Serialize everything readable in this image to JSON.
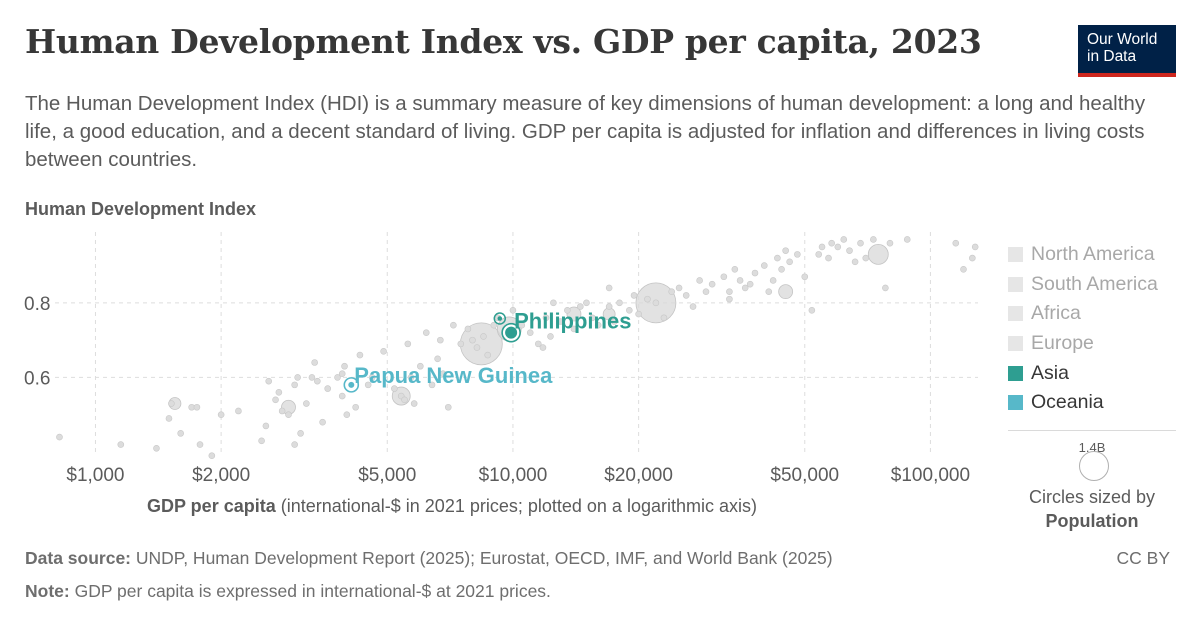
{
  "header": {
    "title": "Human Development Index vs. GDP per capita, 2023",
    "subtitle": "The Human Development Index (HDI) is a summary measure of key dimensions of human development: a long and healthy life, a good education, and a decent standard of living. GDP per capita is adjusted for inflation and differences in living costs between countries.",
    "logo_line1": "Our World",
    "logo_line2": "in Data"
  },
  "chart_data": {
    "type": "scatter",
    "title": "Human Development Index vs. GDP per capita, 2023",
    "ylabel": "Human Development Index",
    "xlabel_bold": "GDP per capita",
    "xlabel_rest": " (international-$ in 2021 prices; plotted on a logarithmic axis)",
    "x_scale": "log",
    "xlim": [
      800,
      130000
    ],
    "ylim": [
      0.4,
      0.99
    ],
    "x_ticks": [
      1000,
      2000,
      5000,
      10000,
      20000,
      50000,
      100000
    ],
    "x_tick_labels": [
      "$1,000",
      "$2,000",
      "$5,000",
      "$10,000",
      "$20,000",
      "$50,000",
      "$100,000"
    ],
    "y_ticks": [
      0.6,
      0.8
    ],
    "y_tick_labels": [
      "0.6",
      "0.8"
    ],
    "grid": true,
    "legend_position": "right",
    "colors": {
      "asia": "#2e9e91",
      "oceania": "#57b8c9",
      "muted_point": "#dcdcdc",
      "muted_point_stroke": "#c8c8c8",
      "muted_legend": "#e6e6e6"
    },
    "legend": [
      {
        "name": "North America",
        "color": "#e6e6e6",
        "muted": true
      },
      {
        "name": "South America",
        "color": "#e6e6e6",
        "muted": true
      },
      {
        "name": "Africa",
        "color": "#e6e6e6",
        "muted": true
      },
      {
        "name": "Europe",
        "color": "#e6e6e6",
        "muted": true
      },
      {
        "name": "Asia",
        "color": "#2e9e91",
        "muted": false
      },
      {
        "name": "Oceania",
        "color": "#57b8c9",
        "muted": false
      }
    ],
    "highlighted": [
      {
        "name": "Philippines",
        "x": 9900,
        "y": 0.72,
        "color": "#2e9e91"
      },
      {
        "name": "Papua New Guinea",
        "x": 4100,
        "y": 0.58,
        "color": "#57b8c9"
      }
    ],
    "background_points": [
      [
        820,
        0.44
      ],
      [
        1150,
        0.42
      ],
      [
        1400,
        0.41
      ],
      [
        1520,
        0.53
      ],
      [
        1500,
        0.49
      ],
      [
        1600,
        0.45
      ],
      [
        1700,
        0.52
      ],
      [
        1750,
        0.52
      ],
      [
        1780,
        0.42
      ],
      [
        1900,
        0.39
      ],
      [
        2000,
        0.5
      ],
      [
        2200,
        0.51
      ],
      [
        2500,
        0.43
      ],
      [
        2560,
        0.47
      ],
      [
        2600,
        0.59
      ],
      [
        2700,
        0.54
      ],
      [
        2750,
        0.56
      ],
      [
        2800,
        0.51
      ],
      [
        2900,
        0.5
      ],
      [
        3000,
        0.58
      ],
      [
        3050,
        0.6
      ],
      [
        3000,
        0.42
      ],
      [
        3100,
        0.45
      ],
      [
        3200,
        0.53
      ],
      [
        3300,
        0.6
      ],
      [
        3350,
        0.64
      ],
      [
        3400,
        0.59
      ],
      [
        3500,
        0.48
      ],
      [
        3800,
        0.6
      ],
      [
        3900,
        0.61
      ],
      [
        3950,
        0.63
      ],
      [
        3900,
        0.55
      ],
      [
        4000,
        0.5
      ],
      [
        4200,
        0.52
      ],
      [
        4300,
        0.66
      ],
      [
        4500,
        0.58
      ],
      [
        4600,
        0.6
      ],
      [
        4900,
        0.67
      ],
      [
        5200,
        0.57
      ],
      [
        5400,
        0.55
      ],
      [
        5500,
        0.54
      ],
      [
        5600,
        0.69
      ],
      [
        5700,
        0.6
      ],
      [
        5800,
        0.53
      ],
      [
        6000,
        0.63
      ],
      [
        6200,
        0.72
      ],
      [
        6400,
        0.58
      ],
      [
        6600,
        0.65
      ],
      [
        6800,
        0.61
      ],
      [
        7000,
        0.52
      ],
      [
        7200,
        0.74
      ],
      [
        7500,
        0.69
      ],
      [
        7800,
        0.73
      ],
      [
        8000,
        0.7
      ],
      [
        8200,
        0.68
      ],
      [
        8500,
        0.71
      ],
      [
        8700,
        0.66
      ],
      [
        9000,
        0.74
      ],
      [
        9200,
        0.76
      ],
      [
        10000,
        0.78
      ],
      [
        10500,
        0.74
      ],
      [
        11000,
        0.72
      ],
      [
        11500,
        0.69
      ],
      [
        12000,
        0.76
      ],
      [
        12300,
        0.71
      ],
      [
        13000,
        0.75
      ],
      [
        13500,
        0.78
      ],
      [
        14000,
        0.73
      ],
      [
        15000,
        0.8
      ],
      [
        15500,
        0.76
      ],
      [
        16000,
        0.74
      ],
      [
        17000,
        0.79
      ],
      [
        17500,
        0.75
      ],
      [
        18000,
        0.8
      ],
      [
        19000,
        0.78
      ],
      [
        20000,
        0.77
      ],
      [
        21000,
        0.81
      ],
      [
        22000,
        0.8
      ],
      [
        23000,
        0.76
      ],
      [
        24000,
        0.83
      ],
      [
        25000,
        0.84
      ],
      [
        26000,
        0.82
      ],
      [
        27000,
        0.79
      ],
      [
        28000,
        0.86
      ],
      [
        29000,
        0.83
      ],
      [
        30000,
        0.85
      ],
      [
        32000,
        0.87
      ],
      [
        33000,
        0.83
      ],
      [
        34000,
        0.89
      ],
      [
        35000,
        0.86
      ],
      [
        36000,
        0.84
      ],
      [
        38000,
        0.88
      ],
      [
        40000,
        0.9
      ],
      [
        42000,
        0.86
      ],
      [
        43000,
        0.92
      ],
      [
        44000,
        0.89
      ],
      [
        45000,
        0.94
      ],
      [
        46000,
        0.91
      ],
      [
        48000,
        0.93
      ],
      [
        50000,
        0.87
      ],
      [
        52000,
        0.78
      ],
      [
        54000,
        0.93
      ],
      [
        55000,
        0.95
      ],
      [
        57000,
        0.92
      ],
      [
        58000,
        0.96
      ],
      [
        60000,
        0.95
      ],
      [
        62000,
        0.97
      ],
      [
        64000,
        0.94
      ],
      [
        66000,
        0.91
      ],
      [
        68000,
        0.96
      ],
      [
        70000,
        0.92
      ],
      [
        73000,
        0.97
      ],
      [
        78000,
        0.84
      ],
      [
        80000,
        0.96
      ],
      [
        88000,
        0.97
      ],
      [
        115000,
        0.96
      ],
      [
        120000,
        0.89
      ],
      [
        128000,
        0.95
      ],
      [
        126000,
        0.92
      ],
      [
        33000,
        0.81
      ],
      [
        37000,
        0.85
      ],
      [
        41000,
        0.83
      ],
      [
        17000,
        0.84
      ],
      [
        14500,
        0.79
      ],
      [
        12500,
        0.8
      ],
      [
        19500,
        0.82
      ],
      [
        11800,
        0.68
      ],
      [
        6700,
        0.7
      ],
      [
        3600,
        0.57
      ]
    ],
    "big_bubbles": [
      {
        "x": 8400,
        "y": 0.69,
        "r": 21,
        "label_hint": "largest"
      },
      {
        "x": 22000,
        "y": 0.8,
        "r": 20
      },
      {
        "x": 9800,
        "y": 0.73,
        "r": 12
      },
      {
        "x": 75000,
        "y": 0.93,
        "r": 10
      },
      {
        "x": 5400,
        "y": 0.55,
        "r": 9
      },
      {
        "x": 2900,
        "y": 0.52,
        "r": 7
      },
      {
        "x": 1550,
        "y": 0.53,
        "r": 6
      },
      {
        "x": 45000,
        "y": 0.83,
        "r": 7
      },
      {
        "x": 14000,
        "y": 0.77,
        "r": 7
      },
      {
        "x": 17000,
        "y": 0.77,
        "r": 6
      }
    ]
  },
  "size_legend": {
    "value": "1.4B",
    "caption_line1": "Circles sized by",
    "caption_line2": "Population"
  },
  "footer": {
    "source_label": "Data source:",
    "source_text": " UNDP, Human Development Report (2025); Eurostat, OECD, IMF, and World Bank (2025)",
    "note_label": "Note:",
    "note_text": " GDP per capita is expressed in international-$ at 2021 prices.",
    "license": "CC BY"
  }
}
